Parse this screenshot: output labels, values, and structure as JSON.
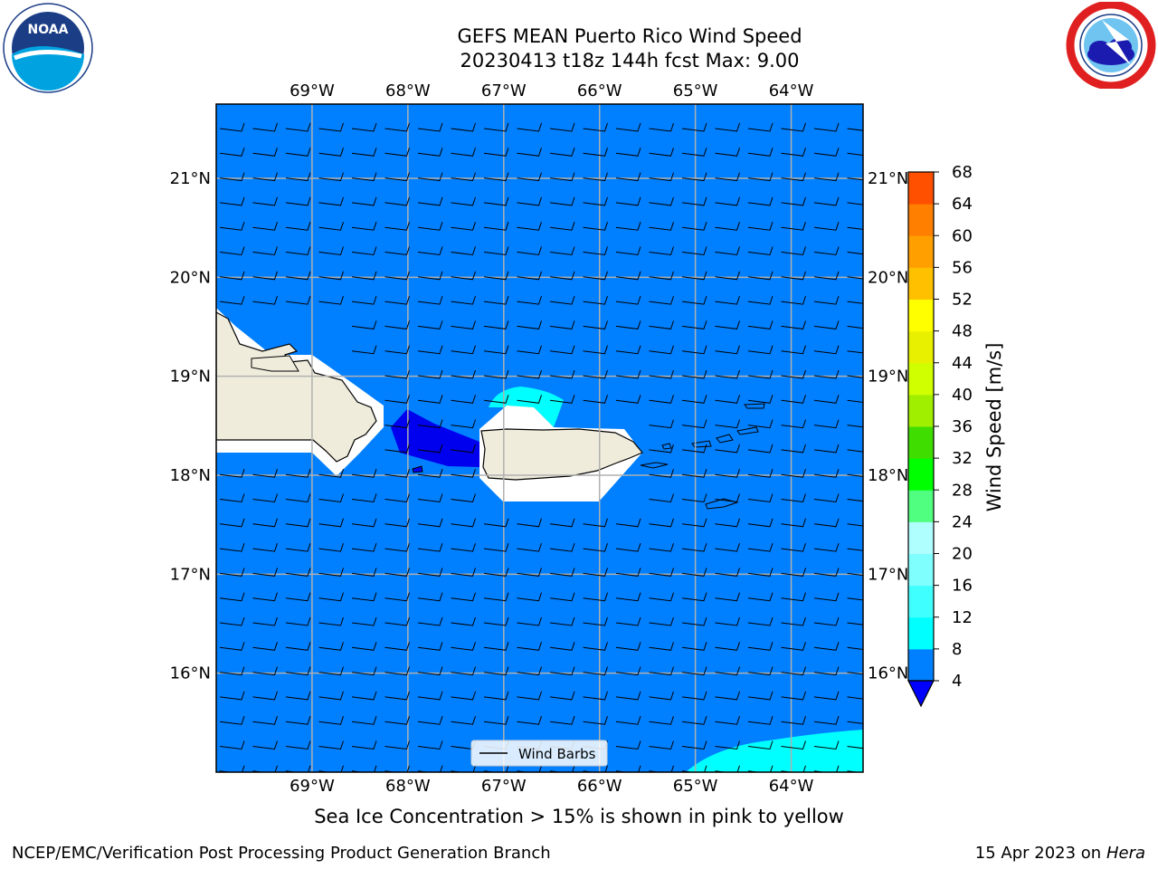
{
  "title_line1": "GEFS MEAN Puerto Rico Wind Speed",
  "title_line2": "20230413 t18z 144h fcst   Max: 9.00",
  "map": {
    "lon_range": [
      -70,
      -63.25
    ],
    "lat_range": [
      15,
      21.75
    ],
    "lon_ticks": [
      -69,
      -68,
      -67,
      -66,
      -65,
      -64
    ],
    "lon_tick_labels": [
      "69°W",
      "68°W",
      "67°W",
      "66°W",
      "65°W",
      "64°W"
    ],
    "lat_ticks": [
      16,
      17,
      18,
      19,
      20,
      21
    ],
    "lat_tick_labels": [
      "16°N",
      "17°N",
      "18°N",
      "19°N",
      "20°N",
      "21°N"
    ],
    "grid": true,
    "legend_label": "Wind Barbs",
    "legend_position": "bottom-center"
  },
  "colorbar": {
    "label": "Wind Speed [m/s]",
    "tick_labels": [
      "4",
      "8",
      "12",
      "16",
      "20",
      "24",
      "28",
      "32",
      "36",
      "40",
      "44",
      "48",
      "52",
      "56",
      "60",
      "64",
      "68"
    ],
    "colors": [
      "#0080ff",
      "#00ffff",
      "#40ffff",
      "#80ffff",
      "#b0ffff",
      "#50ff80",
      "#00ff00",
      "#40dd00",
      "#a0ee00",
      "#d0ff00",
      "#e8f000",
      "#ffff00",
      "#ffc000",
      "#ffa000",
      "#ff8000",
      "#ff5000",
      "#ff2000",
      "#ff0000"
    ],
    "extend_below_color": "#0000ff"
  },
  "note": "Sea Ice Concentration > 15% is shown in pink to yellow",
  "footer_left": "NCEP/EMC/Verification Post Processing Product Generation Branch",
  "footer_right_prefix": "15 Apr 2023 on ",
  "footer_right_host": "Hera",
  "logos": {
    "left": "noaa-logo",
    "right": "nws-logo",
    "left_text": "NOAA"
  },
  "fill_colors": {
    "ocean": "#0080ff",
    "land": "#efecdc",
    "cyan": "#00ffff",
    "dark_blue": "#0000ee",
    "grid": "#b0b0b0"
  }
}
